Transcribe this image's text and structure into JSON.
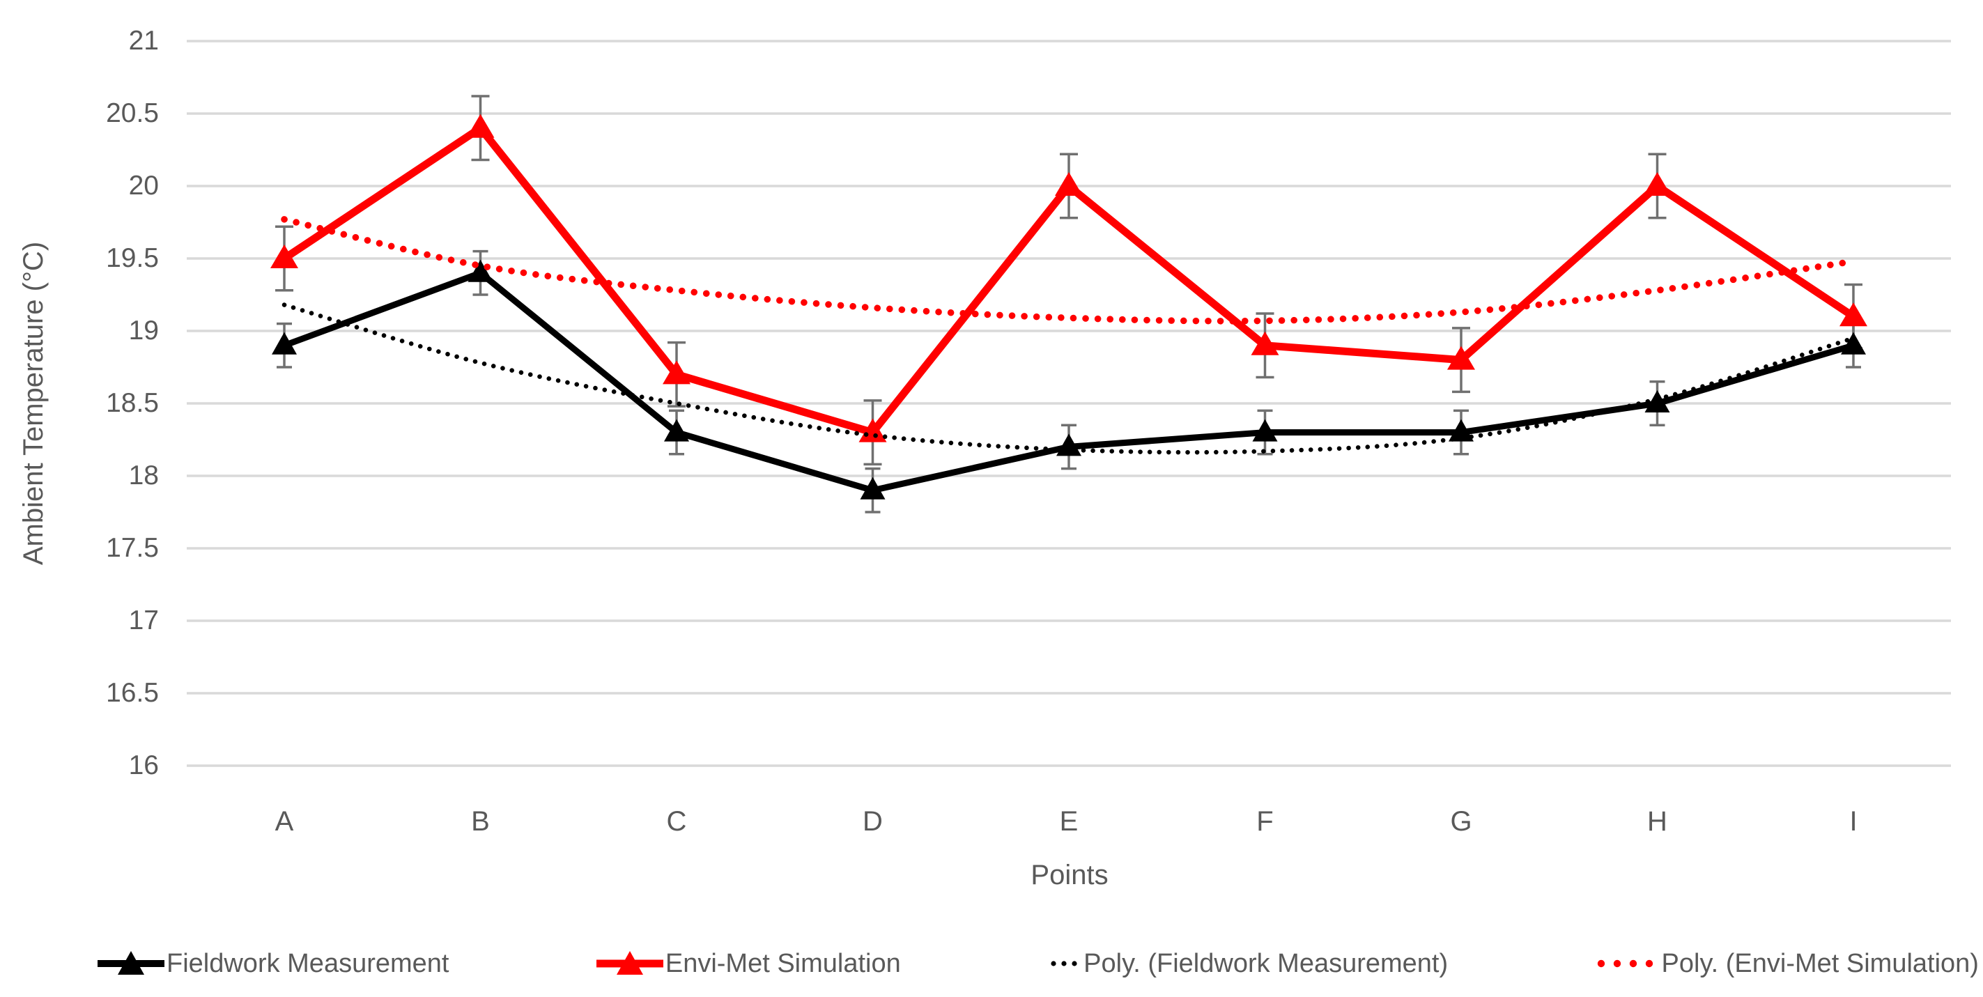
{
  "chart_data": {
    "type": "line",
    "title": "",
    "xlabel": "Points",
    "ylabel": "Ambient Temperature (°C)",
    "categories": [
      "A",
      "B",
      "C",
      "D",
      "E",
      "F",
      "G",
      "H",
      "I"
    ],
    "y_axis": {
      "min": 16,
      "max": 21,
      "step": 0.5,
      "tick_labels": [
        "21",
        "20.5",
        "20",
        "19.5",
        "19",
        "18.5",
        "18",
        "17.5",
        "17",
        "16.5",
        "16"
      ]
    },
    "grid": true,
    "legend_position": "bottom",
    "series": [
      {
        "name": "Fieldwork Measurement",
        "color": "#000000",
        "style": "solid",
        "marker": "triangle",
        "values": [
          18.9,
          19.4,
          18.3,
          17.9,
          18.2,
          18.3,
          18.3,
          18.5,
          18.9
        ],
        "error": 0.15
      },
      {
        "name": "Envi-Met Simulation",
        "color": "#FF0000",
        "style": "solid",
        "marker": "triangle",
        "values": [
          19.5,
          20.4,
          18.7,
          18.3,
          20.0,
          18.9,
          18.8,
          20.0,
          19.1
        ],
        "error": 0.22
      }
    ],
    "trendlines": [
      {
        "name": "Poly. (Fieldwork Measurement)",
        "color": "#000000",
        "style": "dotted",
        "values": [
          19.18,
          18.78,
          18.5,
          18.28,
          18.18,
          18.17,
          18.26,
          18.53,
          18.95
        ]
      },
      {
        "name": "Poly. (Envi-Met Simulation)",
        "color": "#FF0000",
        "style": "dotted",
        "values": [
          19.77,
          19.45,
          19.28,
          19.16,
          19.09,
          19.07,
          19.13,
          19.28,
          19.48
        ]
      }
    ],
    "colors": {
      "grid": "#D9D9D9",
      "axis_text": "#595959",
      "error_bar": "#707070",
      "background": "#FFFFFF"
    }
  }
}
